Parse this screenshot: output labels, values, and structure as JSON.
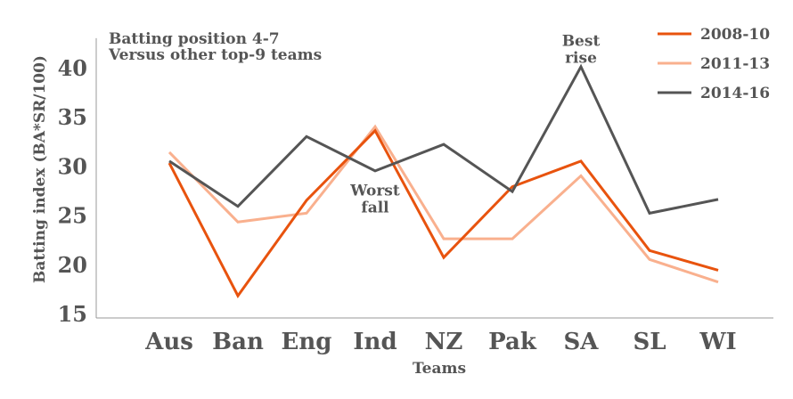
{
  "chart_data": {
    "type": "line",
    "title": "Batting position 4-7",
    "subtitle": "Versus other top-9 teams",
    "xlabel": "Teams",
    "ylabel": "Batting index (BA*SR/100)",
    "categories": [
      "Aus",
      "Ban",
      "Eng",
      "Ind",
      "NZ",
      "Pak",
      "SA",
      "SL",
      "WI"
    ],
    "ylim": [
      15,
      43
    ],
    "yticks": [
      15,
      20,
      25,
      30,
      35,
      40
    ],
    "grid": false,
    "legend_position": "top-right",
    "series": [
      {
        "name": "2008-10",
        "color": "#e8530e",
        "values": [
          30.3,
          16.8,
          26.5,
          33.6,
          20.7,
          27.9,
          30.5,
          21.4,
          19.4
        ]
      },
      {
        "name": "2011-13",
        "color": "#f9b08e",
        "values": [
          31.4,
          24.3,
          25.2,
          34.0,
          22.6,
          22.6,
          29.0,
          20.5,
          18.2
        ]
      },
      {
        "name": "2014-16",
        "color": "#555555",
        "values": [
          30.5,
          25.9,
          33.0,
          29.5,
          32.2,
          27.4,
          40.1,
          25.2,
          26.6
        ]
      }
    ],
    "annotations": [
      {
        "lines": [
          "Best",
          "rise"
        ],
        "category": "SA",
        "y": 42.2
      },
      {
        "lines": [
          "Worst",
          "fall"
        ],
        "category": "Ind",
        "y": 27.0
      }
    ]
  }
}
